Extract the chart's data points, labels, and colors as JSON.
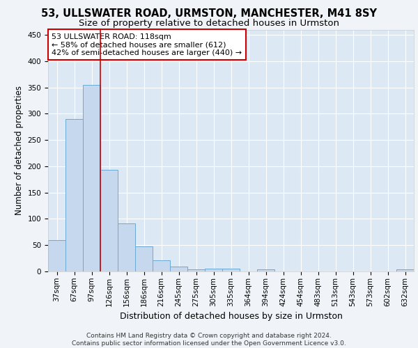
{
  "title_line1": "53, ULLSWATER ROAD, URMSTON, MANCHESTER, M41 8SY",
  "title_line2": "Size of property relative to detached houses in Urmston",
  "xlabel": "Distribution of detached houses by size in Urmston",
  "ylabel": "Number of detached properties",
  "categories": [
    "37sqm",
    "67sqm",
    "97sqm",
    "126sqm",
    "156sqm",
    "186sqm",
    "216sqm",
    "245sqm",
    "275sqm",
    "305sqm",
    "335sqm",
    "364sqm",
    "394sqm",
    "424sqm",
    "454sqm",
    "483sqm",
    "513sqm",
    "543sqm",
    "573sqm",
    "602sqm",
    "632sqm"
  ],
  "values": [
    59,
    290,
    355,
    193,
    92,
    47,
    21,
    9,
    4,
    5,
    5,
    0,
    4,
    0,
    0,
    0,
    0,
    0,
    0,
    0,
    4
  ],
  "bar_color": "#c5d8ee",
  "bar_edge_color": "#6aaad4",
  "vline_color": "#cc0000",
  "annotation_line1": "53 ULLSWATER ROAD: 118sqm",
  "annotation_line2": "← 58% of detached houses are smaller (612)",
  "annotation_line3": "42% of semi-detached houses are larger (440) →",
  "annotation_box_color": "#cc0000",
  "ylim": [
    0,
    460
  ],
  "yticks": [
    0,
    50,
    100,
    150,
    200,
    250,
    300,
    350,
    400,
    450
  ],
  "background_color": "#f0f4f8",
  "plot_bg_color": "#dce9f5",
  "grid_color": "#ffffff",
  "footer_text": "Contains HM Land Registry data © Crown copyright and database right 2024.\nContains public sector information licensed under the Open Government Licence v3.0.",
  "title_fontsize": 10.5,
  "subtitle_fontsize": 9.5,
  "xlabel_fontsize": 9,
  "ylabel_fontsize": 8.5,
  "tick_fontsize": 7.5,
  "annotation_fontsize": 8,
  "footer_fontsize": 6.5
}
